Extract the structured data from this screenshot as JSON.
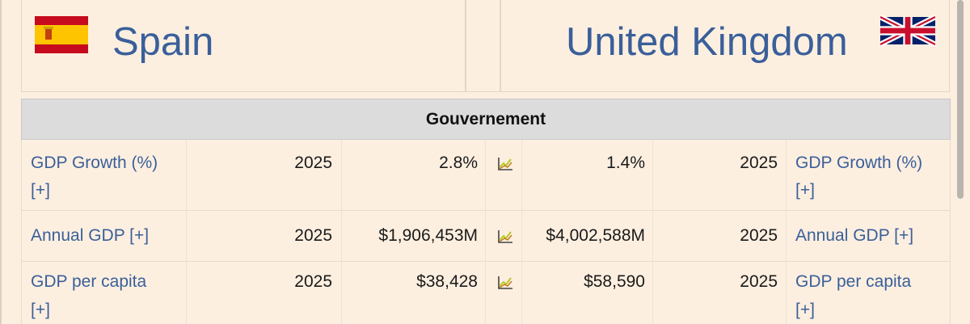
{
  "header": {
    "left_country": "Spain",
    "right_country": "United Kingdom",
    "left_flag": "spain-flag",
    "right_flag": "uk-flag"
  },
  "section": {
    "title": "Gouvernement"
  },
  "rows": [
    {
      "label_line1": "GDP Growth (%)",
      "label_line2": "[+]",
      "left_year": "2025",
      "left_value": "2.8%",
      "right_value": "1.4%",
      "right_year": "2025",
      "right_label_line1": "GDP Growth (%)",
      "right_label_line2": "[+]"
    },
    {
      "label_line1": "Annual GDP [+]",
      "left_year": "2025",
      "left_value": "$1,906,453M",
      "right_value": "$4,002,588M",
      "right_year": "2025",
      "right_label_line1": "Annual GDP [+]"
    },
    {
      "label_line1": "GDP per capita",
      "label_line2": "[+]",
      "left_year": "2025",
      "left_value": "$38,428",
      "right_value": "$58,590",
      "right_year": "2025",
      "right_label_line1": "GDP per capita",
      "right_label_line2": "[+]"
    }
  ],
  "colors": {
    "page_bg": "#fdefe0",
    "link": "#3a5f9a",
    "section_bg": "#dcdcdc"
  },
  "icons": {
    "chart": "line-chart-icon"
  }
}
